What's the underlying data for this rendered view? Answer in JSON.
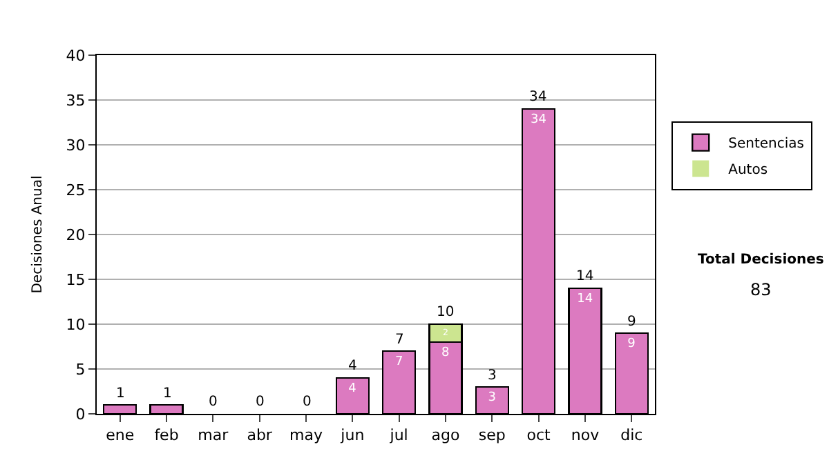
{
  "chart_data": {
    "type": "bar",
    "ylabel": "Decisiones Anual",
    "categories": [
      "ene",
      "feb",
      "mar",
      "abr",
      "may",
      "jun",
      "jul",
      "ago",
      "sep",
      "oct",
      "nov",
      "dic"
    ],
    "series": [
      {
        "name": "Sentencias",
        "color": "#dc7ac0",
        "values": [
          1,
          1,
          0,
          0,
          0,
          4,
          7,
          8,
          3,
          34,
          14,
          9
        ],
        "value_labels": [
          null,
          null,
          null,
          null,
          null,
          "4",
          "7",
          "8",
          "3",
          "34",
          "14",
          "9"
        ]
      },
      {
        "name": "Autos",
        "color": "#cce590",
        "values": [
          0,
          0,
          0,
          0,
          0,
          0,
          0,
          2,
          0,
          0,
          0,
          0
        ],
        "value_labels": [
          null,
          null,
          null,
          null,
          null,
          null,
          null,
          "2",
          null,
          null,
          null,
          null
        ]
      }
    ],
    "stacked": true,
    "totals": [
      "1",
      "1",
      "0",
      "0",
      "0",
      "4",
      "7",
      "10",
      "3",
      "34",
      "14",
      "9"
    ],
    "ylim": [
      0,
      40
    ],
    "yticks": [
      0,
      5,
      10,
      15,
      20,
      25,
      30,
      35,
      40
    ],
    "grid": "y",
    "legend": "right",
    "annotations": [
      "Total Decisiones",
      "83"
    ]
  }
}
